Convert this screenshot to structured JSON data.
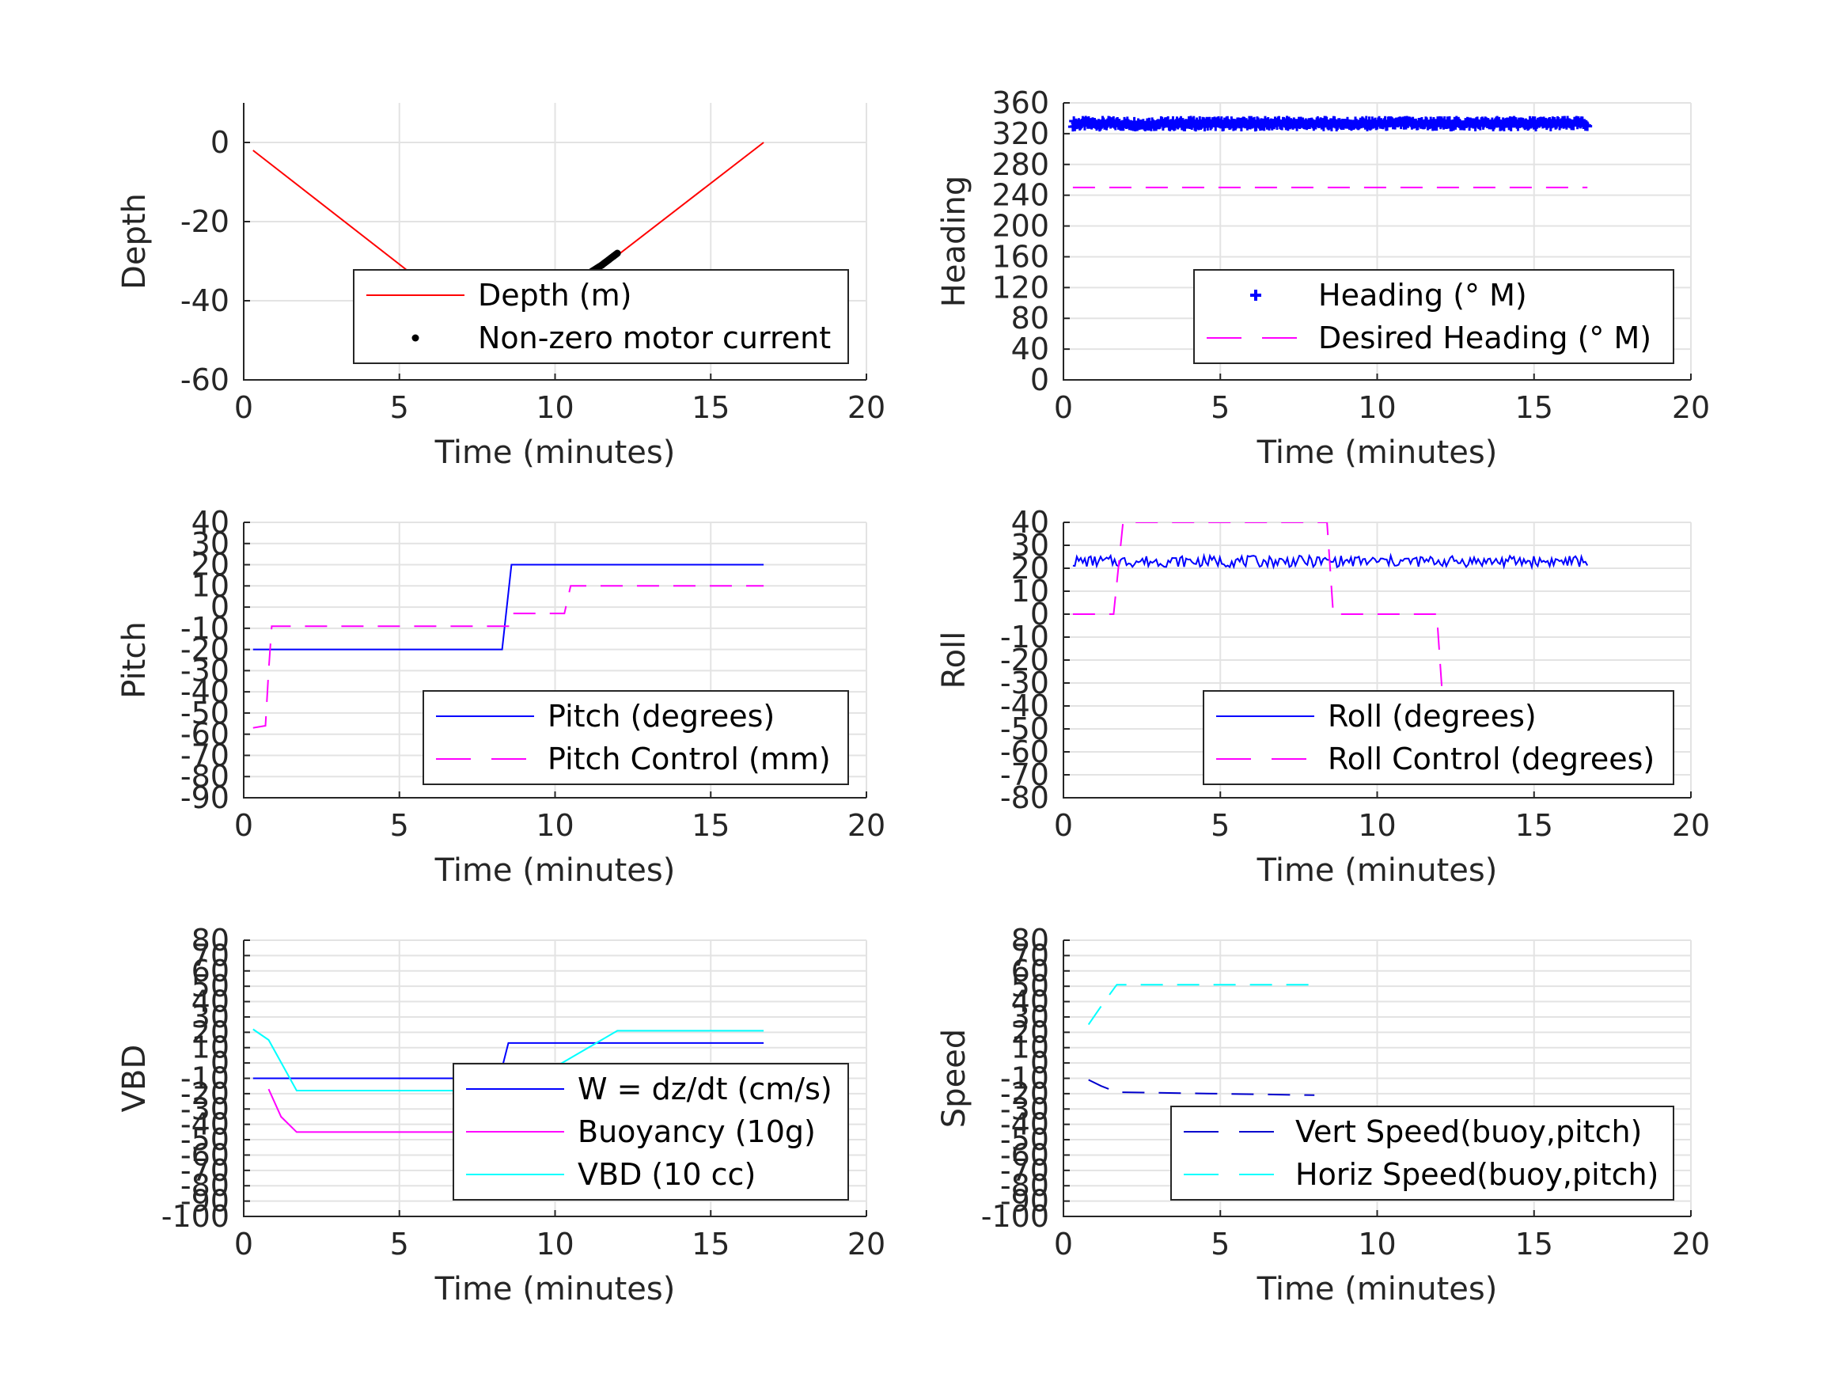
{
  "chart_data": [
    {
      "type": "line",
      "xlabel": "Time (minutes)",
      "ylabel": "Depth",
      "xlim": [
        0,
        20
      ],
      "ylim": [
        -60,
        10
      ],
      "xticks": [
        0,
        5,
        10,
        15,
        20
      ],
      "yticks": [
        -60,
        -40,
        -20,
        0
      ],
      "ytick_labels": [
        "-60",
        "-40",
        "-20",
        "0"
      ],
      "legend_position": "bottom-right",
      "series": [
        {
          "name": "Depth (m)",
          "color": "#ff0000",
          "style": "solid",
          "marker": "none",
          "x": [
            0.3,
            8.3,
            16.7
          ],
          "y": [
            -2,
            -51,
            0
          ]
        },
        {
          "name": "Non-zero motor current",
          "color": "#000000",
          "style": "dots",
          "marker": "point",
          "x": [
            8.6,
            9.0,
            9.5,
            10.0,
            10.5,
            11.0,
            11.5,
            12.0
          ],
          "y": [
            -48,
            -45.5,
            -42.5,
            -39.5,
            -36.5,
            -33.5,
            -31,
            -28
          ]
        }
      ]
    },
    {
      "type": "line",
      "xlabel": "Time (minutes)",
      "ylabel": "Heading",
      "xlim": [
        0,
        20
      ],
      "ylim": [
        0,
        360
      ],
      "xticks": [
        0,
        5,
        10,
        15,
        20
      ],
      "yticks": [
        0,
        40,
        80,
        120,
        160,
        200,
        240,
        280,
        320,
        360
      ],
      "ytick_labels": [
        "0",
        "40",
        "80",
        "120",
        "160",
        "200",
        "240",
        "280",
        "320",
        "360"
      ],
      "legend_position": "bottom-right",
      "series": [
        {
          "name": "Heading (° M)",
          "color": "#0000ff",
          "style": "markers",
          "marker": "plus",
          "x": [
            0.3,
            16.7
          ],
          "y": [
            333,
            333
          ],
          "jitter": 4
        },
        {
          "name": "Desired Heading (° M)",
          "color": "#ff00ff",
          "style": "dashed",
          "marker": "none",
          "x": [
            0.3,
            16.7
          ],
          "y": [
            250,
            250
          ]
        }
      ]
    },
    {
      "type": "line",
      "xlabel": "Time (minutes)",
      "ylabel": "Pitch",
      "xlim": [
        0,
        20
      ],
      "ylim": [
        -90,
        40
      ],
      "xticks": [
        0,
        5,
        10,
        15,
        20
      ],
      "yticks": [
        -90,
        -80,
        -70,
        -60,
        -50,
        -40,
        -30,
        -20,
        -10,
        0,
        10,
        20,
        30,
        40
      ],
      "ytick_labels": [
        "-90",
        "-80",
        "-70",
        "-60",
        "-50",
        "-40",
        "-30",
        "-20",
        "-10",
        "0",
        "10",
        "20",
        "30",
        "40"
      ],
      "legend_position": "bottom-right",
      "series": [
        {
          "name": "Pitch (degrees)",
          "color": "#0000ff",
          "style": "solid",
          "marker": "none",
          "x": [
            0.3,
            8.3,
            8.6,
            16.7
          ],
          "y": [
            -20,
            -20,
            20,
            20
          ]
        },
        {
          "name": "Pitch Control (mm)",
          "color": "#ff00ff",
          "style": "dashed",
          "marker": "none",
          "x": [
            0.3,
            0.7,
            0.8,
            0.9,
            8.5,
            8.6,
            10.3,
            10.5,
            16.7
          ],
          "y": [
            -57,
            -56,
            -30,
            -9,
            -9,
            -3,
            -3,
            10,
            10
          ]
        }
      ]
    },
    {
      "type": "line",
      "xlabel": "Time (minutes)",
      "ylabel": "Roll",
      "xlim": [
        0,
        20
      ],
      "ylim": [
        -80,
        40
      ],
      "xticks": [
        0,
        5,
        10,
        15,
        20
      ],
      "yticks": [
        -80,
        -70,
        -60,
        -50,
        -40,
        -30,
        -20,
        -10,
        0,
        10,
        20,
        30,
        40
      ],
      "ytick_labels": [
        "-80",
        "-70",
        "-60",
        "-50",
        "-40",
        "-30",
        "-20",
        "-10",
        "0",
        "10",
        "20",
        "30",
        "40"
      ],
      "legend_position": "bottom-right",
      "series": [
        {
          "name": "Roll (degrees)",
          "color": "#0000ff",
          "style": "solid",
          "marker": "none",
          "x": [
            0.3,
            16.7
          ],
          "y": [
            23,
            23
          ],
          "jitter": 2.5
        },
        {
          "name": "Roll Control (degrees)",
          "color": "#ff00ff",
          "style": "dashed",
          "marker": "none",
          "x": [
            0.3,
            1.6,
            1.9,
            8.4,
            8.6,
            11.9,
            12.1,
            16.7
          ],
          "y": [
            0,
            0,
            40,
            40,
            0,
            0,
            -40,
            -40
          ]
        }
      ]
    },
    {
      "type": "line",
      "xlabel": "Time (minutes)",
      "ylabel": "VBD",
      "xlim": [
        0,
        20
      ],
      "ylim": [
        -100,
        80
      ],
      "xticks": [
        0,
        5,
        10,
        15,
        20
      ],
      "yticks": [
        -100,
        -90,
        -80,
        -70,
        -60,
        -50,
        -40,
        -30,
        -20,
        -10,
        0,
        10,
        20,
        30,
        40,
        50,
        60,
        70,
        80
      ],
      "ytick_labels": [
        "-100",
        "-90",
        "-80",
        "-70",
        "-60",
        "-50",
        "-40",
        "-30",
        "-20",
        "-10",
        "0",
        "10",
        "20",
        "30",
        "40",
        "50",
        "60",
        "70",
        "80"
      ],
      "legend_position": "bottom-right",
      "series": [
        {
          "name": "W = dz/dt (cm/s)",
          "color": "#0000ff",
          "style": "solid",
          "marker": "none",
          "x": [
            0.3,
            8.2,
            8.3,
            8.5,
            16.7
          ],
          "y": [
            -10,
            -10,
            -3,
            13,
            13
          ]
        },
        {
          "name": "Buoyancy (10g)",
          "color": "#ff00ff",
          "style": "solid",
          "marker": "none",
          "x": [
            0.8,
            1.2,
            1.7,
            8.0
          ],
          "y": [
            -17,
            -35,
            -45,
            -45
          ]
        },
        {
          "name": "VBD (10 cc)",
          "color": "#00ffff",
          "style": "solid",
          "marker": "none",
          "x": [
            0.3,
            0.8,
            1.7,
            8.7,
            12.0,
            16.7
          ],
          "y": [
            22,
            15,
            -18,
            -18,
            21,
            21
          ]
        }
      ]
    },
    {
      "type": "line",
      "xlabel": "Time (minutes)",
      "ylabel": "Speed",
      "xlim": [
        0,
        20
      ],
      "ylim": [
        -100,
        80
      ],
      "xticks": [
        0,
        5,
        10,
        15,
        20
      ],
      "yticks": [
        -100,
        -90,
        -80,
        -70,
        -60,
        -50,
        -40,
        -30,
        -20,
        -10,
        0,
        10,
        20,
        30,
        40,
        50,
        60,
        70,
        80
      ],
      "ytick_labels": [
        "-100",
        "-90",
        "-80",
        "-70",
        "-60",
        "-50",
        "-40",
        "-30",
        "-20",
        "-10",
        "0",
        "10",
        "20",
        "30",
        "40",
        "50",
        "60",
        "70",
        "80"
      ],
      "legend_position": "bottom-right",
      "series": [
        {
          "name": "Vert Speed(buoy,pitch)",
          "color": "#0000cd",
          "style": "dashed",
          "marker": "none",
          "x": [
            0.8,
            1.2,
            1.7,
            8.0
          ],
          "y": [
            -11,
            -15,
            -19,
            -21
          ]
        },
        {
          "name": "Horiz Speed(buoy,pitch)",
          "color": "#00ffff",
          "style": "dashed",
          "marker": "none",
          "x": [
            0.8,
            1.2,
            1.7,
            8.0
          ],
          "y": [
            25,
            37,
            51,
            51
          ]
        }
      ]
    }
  ]
}
